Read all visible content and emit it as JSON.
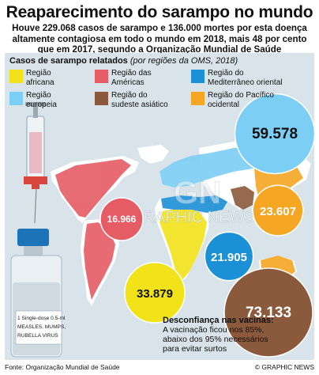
{
  "header": {
    "title": "Reaparecimento do sarampo no mundo",
    "subtitle_lines": [
      "Houve 229.068 casos de sarampo e 136.000 mortes por esta doença",
      "altamente contagiosa em todo o mundo em 2018, mais 48 por cento",
      "que em 2017, segundo a Organização Mundial de Saúde"
    ]
  },
  "chart_data": {
    "type": "bubble-map",
    "title": "Casos de sarampo relatados",
    "subtitle": "(por regiões da OMS, 2018)",
    "series": [
      {
        "name": "Região africana",
        "label": "Região\nafricana",
        "value": 33879,
        "value_label": "33.879",
        "color": "#f2e21a",
        "text_color": "#111111"
      },
      {
        "name": "Região das Américas",
        "label": "Região das\nAméricas",
        "value": 16966,
        "value_label": "16.966",
        "color": "#e65c64",
        "text_color": "#ffffff"
      },
      {
        "name": "Região do Mediterrâneo oriental",
        "label": "Região do\nMediterrâneo oriental",
        "value": 21905,
        "value_label": "21.905",
        "color": "#1c90d6",
        "text_color": "#ffffff"
      },
      {
        "name": "Região europeia",
        "label": "Região\neuropeia",
        "value": 59578,
        "value_label": "59.578",
        "color": "#7ccef4",
        "text_color": "#111111"
      },
      {
        "name": "Região do sudeste asiático",
        "label": "Região do\nsudeste asiático",
        "value": 73133,
        "value_label": "73.133",
        "color": "#8b5a3c",
        "text_color": "#ffffff"
      },
      {
        "name": "Região do Pacífico ocidental",
        "label": "Região do Pacífico\nocidental",
        "value": 23607,
        "value_label": "23.607",
        "color": "#f5a623",
        "text_color": "#ffffff"
      }
    ]
  },
  "note": {
    "title": "Desconfiança nas vacinas:",
    "body": "A vacinação ficou nos 85%,\nabaixo dos 95% necessários\npara evitar surtos"
  },
  "vial_label": "1 Single-dose 0.5-ml\nMEASLES, MUMPS,\nRUBELLA VIRUS",
  "watermark": "GRAPHIC NEWS",
  "footer": {
    "source": "Fonte: Organização Mundial de Saúde",
    "credit": "© GRAPHIC NEWS"
  },
  "colors": {
    "background": "#d8e3ea",
    "land": "#ffffff",
    "text": "#111111"
  }
}
